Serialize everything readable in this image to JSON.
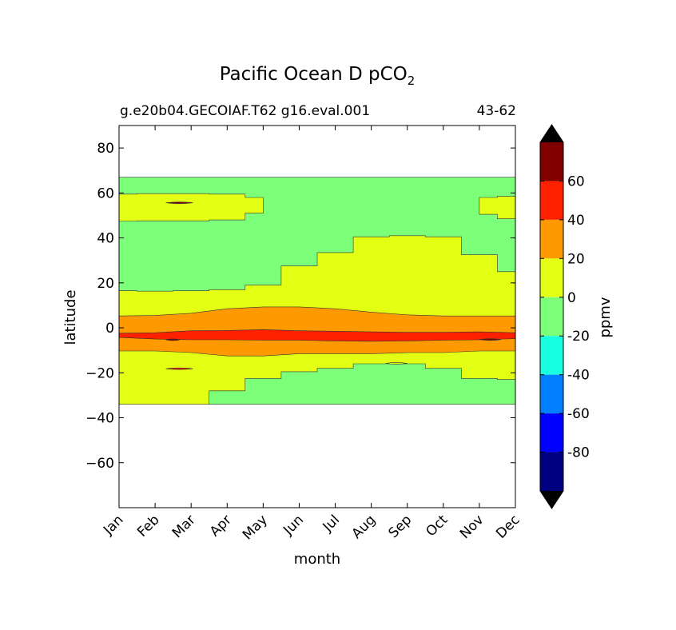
{
  "chart_data": {
    "type": "heatmap",
    "title": "Pacific Ocean D pCO",
    "title_subscript": "2",
    "subtitle_left": "g.e20b04.GECOIAF.T62 g16.eval.001",
    "subtitle_right": "43-62",
    "xlabel": "month",
    "ylabel": "latitude",
    "x_ticks": [
      "Jan",
      "Feb",
      "Mar",
      "Apr",
      "May",
      "Jun",
      "Jul",
      "Aug",
      "Sep",
      "Oct",
      "Nov",
      "Dec"
    ],
    "xlim": [
      1,
      12
    ],
    "ylim": [
      -80,
      90
    ],
    "y_ticks": [
      80,
      60,
      40,
      20,
      0,
      -20,
      -40,
      -60
    ],
    "y_tick_labels": [
      "80",
      "60",
      "40",
      "20",
      "0",
      "−20",
      "−40",
      "−60"
    ],
    "data_extent": {
      "lat_min": -34,
      "lat_max": 67
    },
    "colorbar": {
      "label": "ppmv",
      "tick_labels": [
        "60",
        "40",
        "20",
        "0",
        "-20",
        "-40",
        "-60",
        "-80"
      ],
      "levels": [
        {
          "min": 60,
          "max": 80,
          "color": "#800000"
        },
        {
          "min": 40,
          "max": 60,
          "color": "#ff2000"
        },
        {
          "min": 20,
          "max": 40,
          "color": "#ff9900"
        },
        {
          "min": 0,
          "max": 20,
          "color": "#e3ff14"
        },
        {
          "min": -20,
          "max": 0,
          "color": "#7cff79"
        },
        {
          "min": -40,
          "max": -20,
          "color": "#17ffe0"
        },
        {
          "min": -60,
          "max": -40,
          "color": "#0080ff"
        },
        {
          "min": -80,
          "max": -60,
          "color": "#0000ff"
        },
        {
          "min": -100,
          "max": -80,
          "color": "#000080"
        }
      ],
      "extend_color": "#000000"
    },
    "field": {
      "months": [
        1,
        2,
        3,
        4,
        5,
        6,
        7,
        8,
        9,
        10,
        11,
        12
      ],
      "north_yellow_top": [
        59.5,
        59.7,
        59.7,
        59.5,
        58,
        59,
        59,
        59,
        59,
        59,
        58,
        58.5
      ],
      "north_yellow_bottom": [
        47.5,
        47.6,
        47.6,
        48,
        51,
        48,
        48,
        48,
        48,
        48,
        50.5,
        48.5
      ],
      "north_yellow_present": [
        1,
        1,
        1,
        1,
        1,
        0,
        0,
        0,
        0,
        0,
        1,
        1
      ],
      "boundary_green_yellow_north": [
        16.5,
        16.3,
        16.5,
        17,
        19,
        27.5,
        33.5,
        40.5,
        41,
        40.5,
        32.5,
        25
      ],
      "orange_top": [
        5.3,
        5.5,
        6.5,
        8.5,
        9.3,
        9.3,
        8.5,
        7,
        5.8,
        5.3,
        5.3,
        5.3
      ],
      "red_top": [
        -2.4,
        -2.2,
        -1.3,
        -1.2,
        -0.8,
        -1.3,
        -1.5,
        -1.8,
        -2.0,
        -2.0,
        -1.8,
        -2.2
      ],
      "red_bottom": [
        -4.3,
        -5.0,
        -5.3,
        -5.3,
        -5.5,
        -5.5,
        -5.8,
        -6.0,
        -5.8,
        -5.5,
        -5.3,
        -4.8
      ],
      "orange_bottom": [
        -10.3,
        -10.3,
        -11,
        -12.5,
        -12.5,
        -11.5,
        -11.5,
        -11.5,
        -11,
        -11,
        -10.3,
        -10.3
      ],
      "boundary_yellow_green_south": [
        -34,
        -34,
        -34,
        -28,
        -22.5,
        -19.5,
        -18,
        -16,
        -16,
        -18,
        -22.5,
        -23
      ]
    }
  }
}
